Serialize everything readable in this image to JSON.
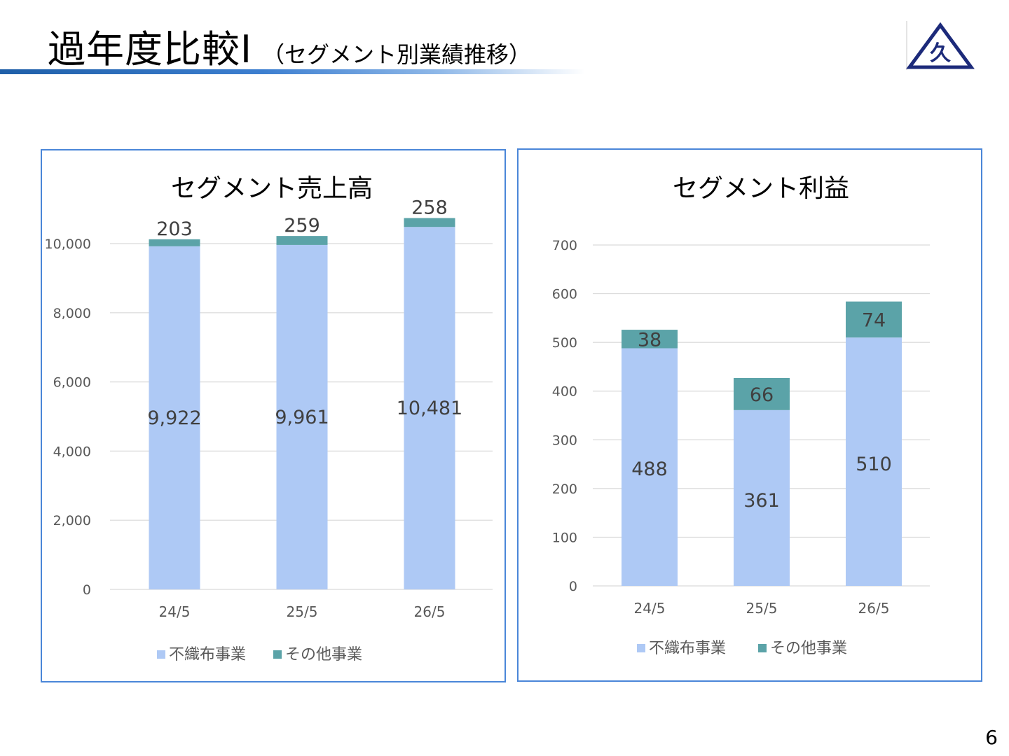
{
  "slide": {
    "title_main": "過年度比較Ⅰ",
    "title_sub": "（セグメント別業績推移）",
    "page_number": "6"
  },
  "colors": {
    "series_main": "#aec9f5",
    "series_other": "#5ba3a8",
    "grid": "#d9d9d9",
    "panel_border": "#4a86d8",
    "axis_text": "#595959",
    "label_text": "#404040",
    "logo": "#1c2a7a"
  },
  "logo": {
    "icon": "triangle-kanji-logo",
    "glyph": "久"
  },
  "chart_data": [
    {
      "type": "bar",
      "stacked": true,
      "title": "セグメント売上高",
      "categories": [
        "24/5",
        "25/5",
        "26/5"
      ],
      "series": [
        {
          "name": "不織布事業",
          "values": [
            9922,
            9961,
            10481
          ],
          "labels": [
            "9,922",
            "9,961",
            "10,481"
          ]
        },
        {
          "name": "その他事業",
          "values": [
            203,
            259,
            258
          ],
          "labels": [
            "203",
            "259",
            "258"
          ]
        }
      ],
      "ylim": [
        0,
        11000
      ],
      "yticks": [
        0,
        2000,
        4000,
        6000,
        8000,
        10000
      ],
      "ytick_labels": [
        "0",
        "2,000",
        "4,000",
        "6,000",
        "8,000",
        "10,000"
      ],
      "grid": true,
      "legend": "bottom"
    },
    {
      "type": "bar",
      "stacked": true,
      "title": "セグメント利益",
      "categories": [
        "24/5",
        "25/5",
        "26/5"
      ],
      "series": [
        {
          "name": "不織布事業",
          "values": [
            488,
            361,
            510
          ],
          "labels": [
            "488",
            "361",
            "510"
          ]
        },
        {
          "name": "その他事業",
          "values": [
            38,
            66,
            74
          ],
          "labels": [
            "38",
            "66",
            "74"
          ]
        }
      ],
      "ylim": [
        0,
        700
      ],
      "yticks": [
        0,
        100,
        200,
        300,
        400,
        500,
        600,
        700
      ],
      "ytick_labels": [
        "0",
        "100",
        "200",
        "300",
        "400",
        "500",
        "600",
        "700"
      ],
      "grid": true,
      "legend": "bottom"
    }
  ]
}
